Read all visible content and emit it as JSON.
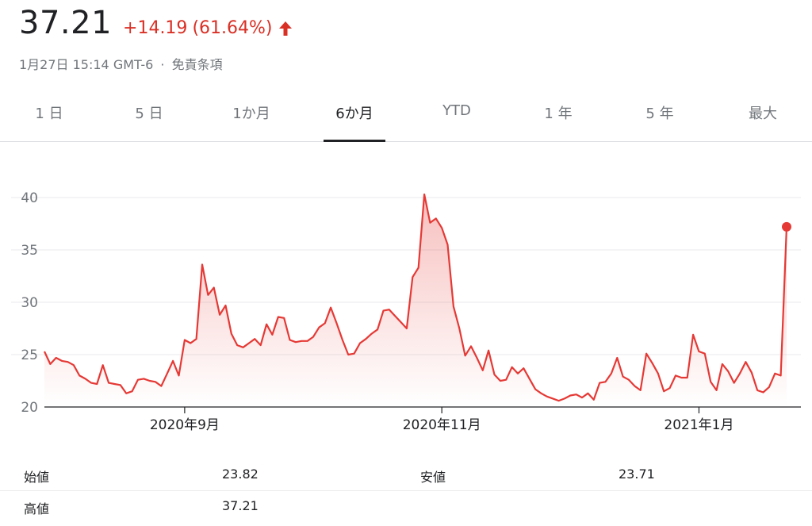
{
  "quote": {
    "price": "37.21",
    "change": "+14.19",
    "change_percent": "(61.64%)",
    "direction_icon": "arrow-up-icon",
    "meta_time": "1月27日 15:14 GMT-6",
    "meta_sep": "·",
    "meta_link": "免責条項"
  },
  "tabs": [
    {
      "label": "1 日"
    },
    {
      "label": "5 日"
    },
    {
      "label": "1か月"
    },
    {
      "label": "6か月",
      "active": true
    },
    {
      "label": "YTD"
    },
    {
      "label": "1 年"
    },
    {
      "label": "5 年"
    },
    {
      "label": "最大"
    }
  ],
  "colors": {
    "line": "#e53935",
    "up": "#d93025",
    "grid": "#e8eaed",
    "axis": "#202124"
  },
  "chart_data": {
    "type": "area",
    "y_ticks": [
      20,
      25,
      30,
      35,
      40
    ],
    "ylim": [
      20,
      41
    ],
    "x_tick_labels": [
      "2020年9月",
      "2020年11月",
      "2021年1月"
    ],
    "x_tick_index": [
      24,
      68,
      112
    ],
    "values": [
      25.3,
      24.1,
      24.7,
      24.4,
      24.3,
      24.0,
      23.0,
      22.7,
      22.3,
      22.2,
      24.0,
      22.3,
      22.2,
      22.1,
      21.3,
      21.5,
      22.6,
      22.7,
      22.5,
      22.4,
      22.0,
      23.2,
      24.4,
      23.0,
      26.4,
      26.1,
      26.5,
      33.6,
      30.7,
      31.4,
      28.8,
      29.7,
      27.0,
      25.9,
      25.7,
      26.1,
      26.5,
      25.9,
      27.9,
      26.9,
      28.6,
      28.5,
      26.4,
      26.2,
      26.3,
      26.3,
      26.7,
      27.6,
      28.0,
      29.5,
      28.0,
      26.4,
      25.0,
      25.1,
      26.1,
      26.5,
      27.0,
      27.4,
      29.2,
      29.3,
      28.7,
      28.1,
      27.5,
      32.4,
      33.3,
      40.3,
      37.6,
      38.0,
      37.1,
      35.5,
      29.6,
      27.5,
      24.9,
      25.8,
      24.7,
      23.5,
      25.4,
      23.1,
      22.5,
      22.6,
      23.8,
      23.2,
      23.7,
      22.7,
      21.7,
      21.3,
      21.0,
      20.8,
      20.6,
      20.8,
      21.1,
      21.2,
      20.9,
      21.3,
      20.7,
      22.3,
      22.4,
      23.2,
      24.7,
      22.9,
      22.6,
      22.0,
      21.6,
      25.1,
      24.2,
      23.2,
      21.5,
      21.8,
      23.0,
      22.8,
      22.8,
      26.9,
      25.3,
      25.1,
      22.4,
      21.6,
      24.1,
      23.4,
      22.3,
      23.2,
      24.3,
      23.3,
      21.6,
      21.4,
      21.9,
      23.2,
      23.0,
      37.21
    ]
  },
  "stats": {
    "open_label": "始値",
    "open_value": "23.82",
    "low_label": "安値",
    "low_value": "23.71",
    "high_label": "高値",
    "high_value": "37.21"
  }
}
